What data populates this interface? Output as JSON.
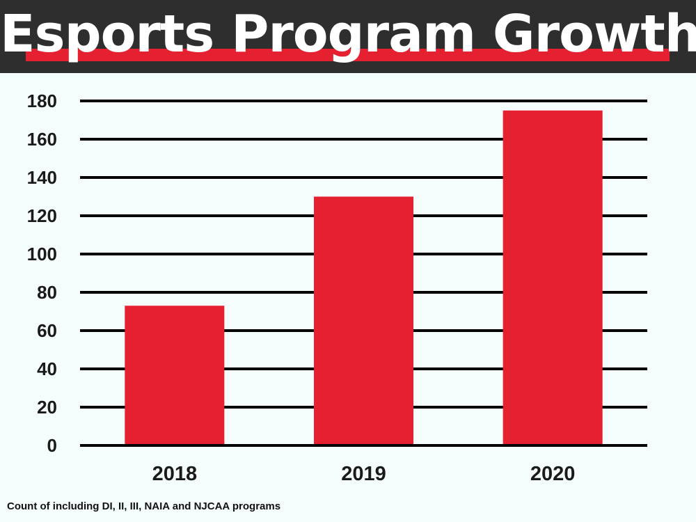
{
  "header": {
    "title": "Esports Program Growth"
  },
  "colors": {
    "header_background": "#2e2e2e",
    "accent": "#e52131",
    "bar": "#e52131",
    "gridline": "#000000",
    "page_background": "#f5fcfc"
  },
  "chart_data": {
    "type": "bar",
    "title": "Esports Program Growth",
    "xlabel": "",
    "ylabel": "",
    "categories": [
      "2018",
      "2019",
      "2020"
    ],
    "values": [
      73,
      130,
      175
    ],
    "ylim": [
      0,
      180
    ],
    "yticks": [
      0,
      20,
      40,
      60,
      80,
      100,
      120,
      140,
      160,
      180
    ],
    "grid": true,
    "legend": "none",
    "footnote": "Count of including DI, II, III, NAIA and NJCAA programs"
  }
}
